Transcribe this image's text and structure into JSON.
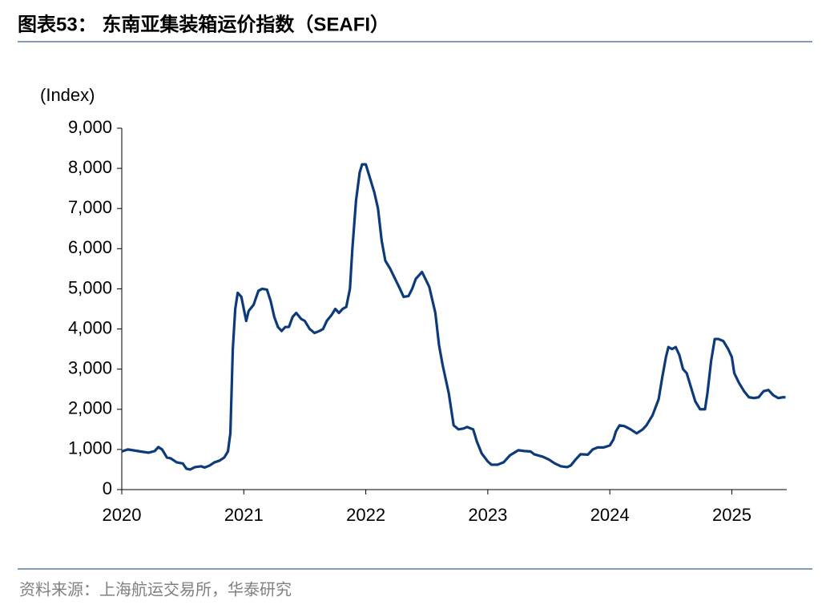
{
  "chart_data": {
    "type": "line",
    "title": "图表53：  东南亚集装箱运价指数（SEAFI）",
    "y_label": "(Index)",
    "source": "资料来源：上海航运交易所，华泰研究",
    "xlim": [
      2020,
      2025.45
    ],
    "xticks": [
      2020,
      2021,
      2022,
      2023,
      2024,
      2025
    ],
    "ylim": [
      0,
      9000
    ],
    "yticks": [
      0,
      {
        "value": 1000,
        "label": "1,000"
      },
      {
        "value": 2000,
        "label": "2,000"
      },
      {
        "value": 3000,
        "label": "3,000"
      },
      {
        "value": 4000,
        "label": "4,000"
      },
      {
        "value": 5000,
        "label": "5,000"
      },
      {
        "value": 6000,
        "label": "6,000"
      },
      {
        "value": 7000,
        "label": "7,000"
      },
      {
        "value": 8000,
        "label": "8,000"
      },
      {
        "value": 9000,
        "label": "9,000"
      }
    ],
    "grid": false,
    "color": "#0d3a7a",
    "x": [
      2020.0,
      2020.05,
      2020.15,
      2020.22,
      2020.27,
      2020.3,
      2020.33,
      2020.37,
      2020.4,
      2020.45,
      2020.5,
      2020.53,
      2020.56,
      2020.6,
      2020.65,
      2020.68,
      2020.72,
      2020.76,
      2020.8,
      2020.84,
      2020.87,
      2020.89,
      2020.91,
      2020.93,
      2020.95,
      2020.98,
      2021.0,
      2021.02,
      2021.04,
      2021.08,
      2021.12,
      2021.15,
      2021.19,
      2021.22,
      2021.25,
      2021.28,
      2021.31,
      2021.34,
      2021.37,
      2021.4,
      2021.43,
      2021.47,
      2021.5,
      2021.54,
      2021.58,
      2021.62,
      2021.65,
      2021.68,
      2021.72,
      2021.75,
      2021.78,
      2021.81,
      2021.84,
      2021.87,
      2021.89,
      2021.92,
      2021.95,
      2021.97,
      2022.0,
      2022.03,
      2022.07,
      2022.1,
      2022.13,
      2022.16,
      2022.2,
      2022.24,
      2022.28,
      2022.31,
      2022.35,
      2022.38,
      2022.41,
      2022.44,
      2022.46,
      2022.48,
      2022.52,
      2022.57,
      2022.6,
      2022.63,
      2022.68,
      2022.72,
      2022.76,
      2022.8,
      2022.83,
      2022.88,
      2022.91,
      2022.95,
      2023.0,
      2023.03,
      2023.08,
      2023.13,
      2023.18,
      2023.25,
      2023.3,
      2023.35,
      2023.38,
      2023.45,
      2023.5,
      2023.55,
      2023.6,
      2023.65,
      2023.68,
      2023.72,
      2023.76,
      2023.82,
      2023.86,
      2023.9,
      2023.95,
      2024.0,
      2024.03,
      2024.05,
      2024.08,
      2024.12,
      2024.17,
      2024.22,
      2024.27,
      2024.3,
      2024.35,
      2024.4,
      2024.43,
      2024.46,
      2024.48,
      2024.51,
      2024.54,
      2024.57,
      2024.6,
      2024.63,
      2024.67,
      2024.7,
      2024.74,
      2024.78,
      2024.8,
      2024.83,
      2024.86,
      2024.89,
      2024.93,
      2024.97,
      2025.0,
      2025.02,
      2025.06,
      2025.1,
      2025.14,
      2025.18,
      2025.22,
      2025.26,
      2025.3,
      2025.34,
      2025.38,
      2025.42,
      2025.44
    ],
    "values": [
      950,
      1000,
      950,
      920,
      960,
      1060,
      1000,
      800,
      780,
      680,
      650,
      520,
      500,
      560,
      580,
      550,
      600,
      680,
      720,
      800,
      950,
      1400,
      3500,
      4500,
      4900,
      4800,
      4500,
      4200,
      4450,
      4600,
      4950,
      5000,
      4980,
      4700,
      4300,
      4050,
      3950,
      4050,
      4050,
      4300,
      4400,
      4250,
      4200,
      4000,
      3900,
      3950,
      4000,
      4200,
      4350,
      4500,
      4400,
      4500,
      4550,
      5000,
      6000,
      7200,
      7900,
      8100,
      8100,
      7800,
      7400,
      7000,
      6200,
      5700,
      5500,
      5250,
      5000,
      4800,
      4820,
      5000,
      5250,
      5350,
      5420,
      5300,
      5050,
      4400,
      3600,
      3100,
      2400,
      1600,
      1500,
      1520,
      1560,
      1500,
      1200,
      900,
      700,
      620,
      620,
      680,
      850,
      980,
      960,
      950,
      880,
      820,
      750,
      650,
      580,
      560,
      600,
      750,
      880,
      870,
      1000,
      1050,
      1050,
      1100,
      1250,
      1450,
      1600,
      1580,
      1500,
      1400,
      1500,
      1600,
      1850,
      2250,
      2800,
      3300,
      3550,
      3500,
      3550,
      3350,
      3000,
      2900,
      2500,
      2200,
      2000,
      2000,
      2400,
      3200,
      3750,
      3750,
      3700,
      3500,
      3300,
      2900,
      2650,
      2450,
      2300,
      2280,
      2300,
      2450,
      2480,
      2350,
      2280,
      2300,
      2300
    ]
  }
}
